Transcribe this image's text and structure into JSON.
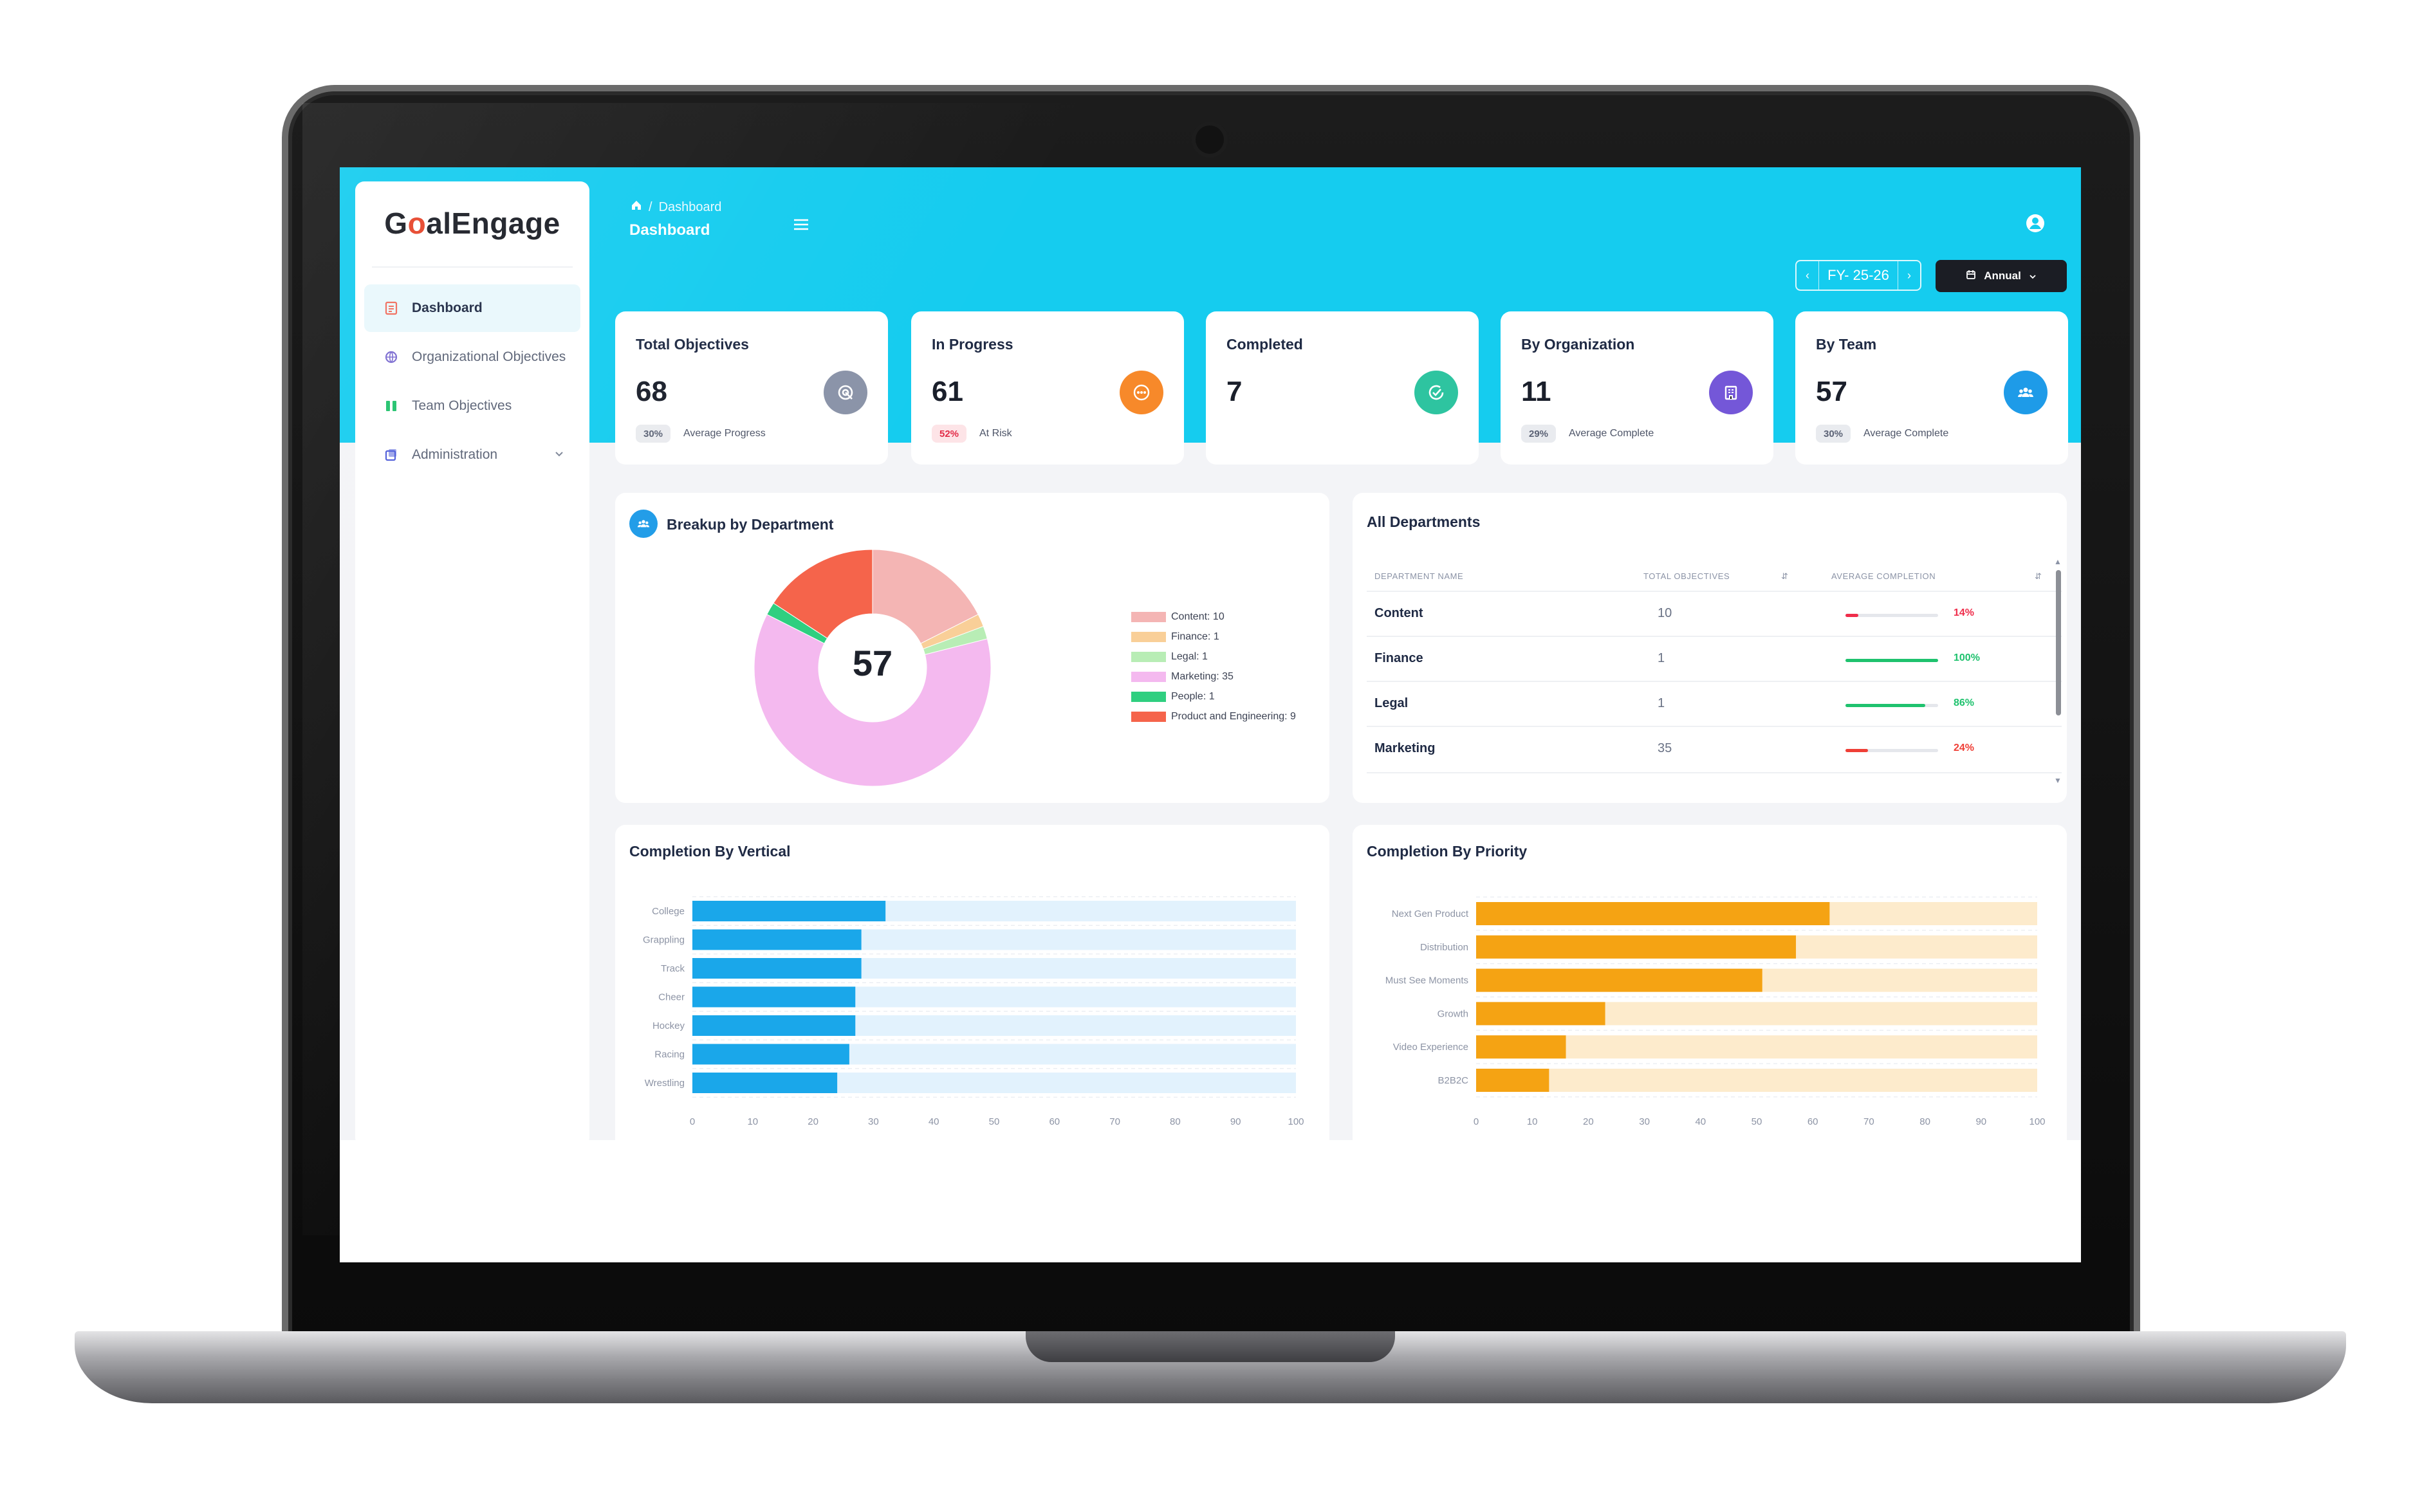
{
  "app": {
    "logo": "GoalEngage",
    "logo_parts": [
      "G",
      "o",
      "alEngage"
    ],
    "breadcrumb": {
      "home_icon": "home-icon",
      "separator": "/",
      "current": "Dashboard"
    },
    "page_title": "Dashboard"
  },
  "sidebar": {
    "items": [
      {
        "label": "Dashboard",
        "icon": "dashboard-icon",
        "active": true
      },
      {
        "label": "Organizational Objectives",
        "icon": "globe-icon",
        "active": false
      },
      {
        "label": "Team Objectives",
        "icon": "team-icon",
        "active": false
      },
      {
        "label": "Administration",
        "icon": "admin-icon",
        "active": false,
        "has_submenu": true
      }
    ]
  },
  "toolbar": {
    "fiscal_year": "FY- 25-26",
    "prev": "‹",
    "next": "›",
    "period_button": "Annual"
  },
  "kpis": [
    {
      "title": "Total Objectives",
      "value": "68",
      "badge": "30%",
      "note": "Average Progress",
      "icon": "target-icon",
      "color": "#8a93a8",
      "badge_style": "grey"
    },
    {
      "title": "In Progress",
      "value": "61",
      "badge": "52%",
      "note": "At Risk",
      "icon": "dots-icon",
      "color": "#f7892a",
      "badge_style": "red"
    },
    {
      "title": "Completed",
      "value": "7",
      "badge": "",
      "note": "",
      "icon": "check-icon",
      "color": "#2ec4a0",
      "badge_style": "none"
    },
    {
      "title": "By Organization",
      "value": "11",
      "badge": "29%",
      "note": "Average Complete",
      "icon": "building-icon",
      "color": "#7457d8",
      "badge_style": "grey"
    },
    {
      "title": "By Team",
      "value": "57",
      "badge": "30%",
      "note": "Average Complete",
      "icon": "team-icon",
      "color": "#1e9be8",
      "badge_style": "grey"
    }
  ],
  "breakup": {
    "title": "Breakup by Department",
    "center_value": "57",
    "legend": [
      {
        "label": "Content: 10",
        "color": "#f4b5b4"
      },
      {
        "label": "Finance: 1",
        "color": "#f9cf98"
      },
      {
        "label": "Legal: 1",
        "color": "#b8edb5"
      },
      {
        "label": "Marketing: 35",
        "color": "#f4b9ef"
      },
      {
        "label": "People: 1",
        "color": "#2fcf80"
      },
      {
        "label": "Product and Engineering: 9",
        "color": "#f5644b"
      }
    ]
  },
  "departments": {
    "title": "All Departments",
    "columns": [
      "DEPARTMENT NAME",
      "TOTAL OBJECTIVES",
      "AVERAGE COMPLETION"
    ],
    "rows": [
      {
        "name": "Content",
        "total": "10",
        "completion": "14%",
        "value": 14,
        "color": "#ef2d4b"
      },
      {
        "name": "Finance",
        "total": "1",
        "completion": "100%",
        "value": 100,
        "color": "#1fc26e"
      },
      {
        "name": "Legal",
        "total": "1",
        "completion": "86%",
        "value": 86,
        "color": "#1fc26e"
      },
      {
        "name": "Marketing",
        "total": "35",
        "completion": "24%",
        "value": 24,
        "color": "#ef3f36"
      }
    ]
  },
  "chart_data": [
    {
      "type": "pie",
      "title": "Breakup by Department",
      "categories": [
        "Content",
        "Finance",
        "Legal",
        "Marketing",
        "People",
        "Product and Engineering"
      ],
      "values": [
        10,
        1,
        1,
        35,
        1,
        9
      ],
      "center_label": "57",
      "colors": [
        "#f4b5b4",
        "#f9cf98",
        "#b8edb5",
        "#f4b9ef",
        "#2fcf80",
        "#f5644b"
      ],
      "legend_position": "right"
    },
    {
      "type": "bar",
      "orientation": "horizontal",
      "title": "Completion By Vertical",
      "categories": [
        "College",
        "Grappling",
        "Track",
        "Cheer",
        "Hockey",
        "Racing",
        "Wrestling"
      ],
      "values": [
        32,
        28,
        28,
        27,
        27,
        26,
        24
      ],
      "xlim": [
        0,
        100
      ],
      "xticks": [
        "0",
        "10",
        "20",
        "30",
        "40",
        "50",
        "60",
        "70",
        "80",
        "90",
        "100"
      ],
      "color": "#1aa7ea",
      "track_color": "#e2f2fd"
    },
    {
      "type": "bar",
      "orientation": "horizontal",
      "title": "Completion By Priority",
      "categories": [
        "Next Gen Product",
        "Distribution",
        "Must See Moments",
        "Growth",
        "Video Experience",
        "B2B2C"
      ],
      "values": [
        63,
        57,
        51,
        23,
        16,
        13
      ],
      "xlim": [
        0,
        100
      ],
      "xticks": [
        "0",
        "10",
        "20",
        "30",
        "40",
        "50",
        "60",
        "70",
        "80",
        "90",
        "100"
      ],
      "color": "#f5a313",
      "track_color": "#fdebcc"
    }
  ]
}
